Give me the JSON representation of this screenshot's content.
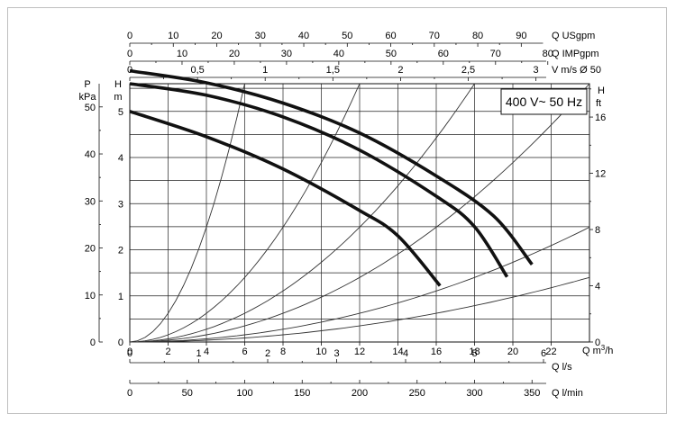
{
  "chart_data": {
    "type": "line",
    "title": "",
    "annotation": "400 V~ 50 Hz",
    "xlabel": "Q m³/h",
    "xlim": [
      0,
      24
    ],
    "x_ticks": [
      "0",
      "2",
      "4",
      "6",
      "8",
      "10",
      "12",
      "14",
      "16",
      "18",
      "20",
      "22"
    ],
    "ylabel_left": "H m",
    "ylim": [
      0,
      5.6
    ],
    "y_ticks": [
      "0",
      "1",
      "2",
      "3",
      "4",
      "5"
    ],
    "pressure_axis": {
      "label_top": "P",
      "label_unit": "kPa",
      "ticks": [
        "0",
        "10",
        "20",
        "30",
        "40",
        "50"
      ]
    },
    "right_axis": {
      "label_top": "H",
      "label_unit": "ft",
      "ticks": [
        "0",
        "4",
        "8",
        "12",
        "16"
      ]
    },
    "top_axes": [
      {
        "label": "Q USgpm",
        "ticks": [
          "0",
          "10",
          "20",
          "30",
          "40",
          "50",
          "60",
          "70",
          "80",
          "90"
        ]
      },
      {
        "label": "Q IMPgpm",
        "ticks": [
          "0",
          "10",
          "20",
          "30",
          "40",
          "50",
          "60",
          "70",
          "80"
        ]
      },
      {
        "label": "V m/s Ø 50",
        "ticks": [
          "0",
          "0,5",
          "1",
          "1,5",
          "2",
          "2,5",
          "3"
        ]
      }
    ],
    "bottom_axes": [
      {
        "label": "Q l/s",
        "ticks": [
          "0",
          "1",
          "2",
          "3",
          "4",
          "5",
          "6"
        ]
      },
      {
        "label": "Q l/min",
        "ticks": [
          "0",
          "50",
          "100",
          "150",
          "200",
          "250",
          "300",
          "350"
        ]
      }
    ],
    "grid": true,
    "series": [
      {
        "x": [
          0,
          4,
          8,
          12,
          16,
          19,
          21
        ],
        "y": [
          5.88,
          5.62,
          5.18,
          4.53,
          3.6,
          2.73,
          1.68
        ]
      },
      {
        "x": [
          0,
          4,
          8,
          12,
          16,
          18,
          19.7
        ],
        "y": [
          5.6,
          5.35,
          4.88,
          4.16,
          3.16,
          2.5,
          1.41
        ]
      },
      {
        "x": [
          0,
          4,
          8,
          12,
          14,
          16.2
        ],
        "y": [
          5.0,
          4.45,
          3.75,
          2.85,
          2.3,
          1.22
        ]
      }
    ],
    "system_curves": [
      {
        "x_at_top": 6.0
      },
      {
        "x_at_top": 12.0
      },
      {
        "x_at_top": 18.0
      },
      {
        "x_at_top": 24.0
      },
      {
        "x_at_top": 36.0
      },
      {
        "x_at_top": 48.0
      }
    ]
  }
}
